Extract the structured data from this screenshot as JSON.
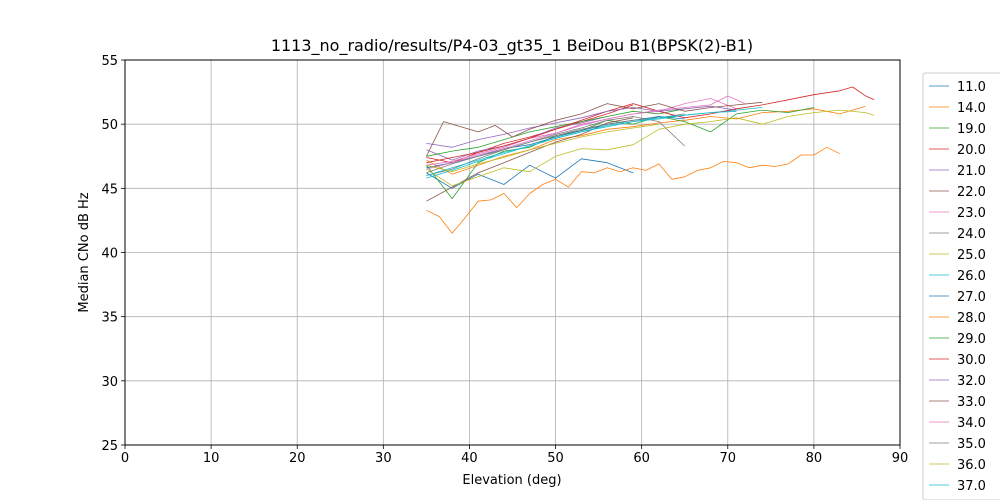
{
  "chart_data": {
    "type": "line",
    "title": "1113_no_radio/results/P4-03_gt35_1 BeiDou B1(BPSK(2)-B1)",
    "xlabel": "Elevation (deg)",
    "ylabel": "Median CNo dB Hz",
    "xlim": [
      0,
      90
    ],
    "ylim": [
      25,
      55
    ],
    "xticks": [
      "0",
      "10",
      "20",
      "30",
      "40",
      "50",
      "60",
      "70",
      "80",
      "90"
    ],
    "yticks": [
      "25",
      "30",
      "35",
      "40",
      "45",
      "50",
      "55"
    ],
    "grid": true,
    "legend_position": "right",
    "series": [
      {
        "name": "11.0",
        "color": "#1f77b4",
        "x": [
          35,
          38,
          41,
          44,
          47,
          50,
          53,
          56,
          59
        ],
        "y": [
          46.2,
          45.0,
          46.1,
          45.3,
          46.8,
          45.8,
          47.3,
          47.0,
          46.2
        ]
      },
      {
        "name": "14.0",
        "color": "#ff7f0e",
        "x": [
          35,
          38,
          41,
          44,
          47,
          50,
          53,
          56,
          59,
          62,
          65,
          68,
          71,
          74,
          77,
          80,
          83,
          86
        ],
        "y": [
          47.2,
          46.1,
          46.8,
          47.5,
          48.0,
          48.8,
          49.1,
          49.6,
          49.8,
          50.1,
          50.3,
          50.6,
          50.4,
          50.9,
          51.0,
          51.2,
          50.8,
          51.4
        ]
      },
      {
        "name": "19.0",
        "color": "#2ca02c",
        "x": [
          35,
          38,
          41,
          44,
          47,
          50,
          53,
          56,
          59,
          62,
          65,
          68,
          71,
          74,
          77,
          80
        ],
        "y": [
          46.8,
          44.2,
          47.0,
          47.9,
          48.2,
          49.1,
          49.5,
          50.3,
          50.0,
          50.6,
          50.2,
          49.4,
          50.8,
          51.1,
          50.9,
          51.3
        ]
      },
      {
        "name": "20.0",
        "color": "#d62728",
        "x": [
          35,
          38,
          41,
          44,
          47,
          50,
          53,
          56,
          59
        ],
        "y": [
          47.4,
          47.0,
          47.8,
          48.5,
          49.0,
          49.6,
          50.2,
          50.8,
          51.5
        ]
      },
      {
        "name": "21.0",
        "color": "#9467bd",
        "x": [
          35,
          38,
          41,
          44,
          47,
          50,
          53,
          56
        ],
        "y": [
          48.0,
          47.2,
          47.9,
          48.3,
          48.9,
          49.7,
          50.1,
          50.6
        ]
      },
      {
        "name": "22.0",
        "color": "#8c564b",
        "x": [
          35,
          38,
          41,
          44,
          47,
          50,
          53,
          56,
          59
        ],
        "y": [
          44.0,
          45.1,
          46.2,
          47.0,
          47.8,
          48.6,
          49.2,
          50.1,
          50.5
        ]
      },
      {
        "name": "23.0",
        "color": "#e377c2",
        "x": [
          35,
          38,
          41,
          44,
          47,
          50,
          53,
          56,
          59,
          62,
          65,
          68,
          71
        ],
        "y": [
          46.8,
          47.1,
          47.7,
          48.2,
          48.9,
          49.3,
          50.0,
          50.4,
          50.8,
          51.0,
          51.6,
          52.0,
          51.2
        ]
      },
      {
        "name": "24.0",
        "color": "#7f7f7f",
        "x": [
          35,
          38,
          41,
          44,
          47,
          50,
          53,
          56,
          59,
          62,
          65
        ],
        "y": [
          46.0,
          46.5,
          47.3,
          48.0,
          48.6,
          49.2,
          49.7,
          50.3,
          50.6,
          50.2,
          48.3
        ]
      },
      {
        "name": "25.0",
        "color": "#bcbd22",
        "x": [
          35,
          38,
          41,
          44,
          47,
          50,
          53,
          56,
          59,
          62,
          65,
          68,
          71,
          74,
          77,
          80,
          83,
          86,
          87
        ],
        "y": [
          46.5,
          45.2,
          45.9,
          46.6,
          46.3,
          47.5,
          48.1,
          48.0,
          48.4,
          49.6,
          50.0,
          50.2,
          50.5,
          50.0,
          50.6,
          50.9,
          51.1,
          50.9,
          50.7
        ]
      },
      {
        "name": "26.0",
        "color": "#17becf",
        "x": [
          35,
          38,
          41,
          44,
          47,
          50,
          53,
          56,
          59,
          62,
          65,
          68,
          71,
          74
        ],
        "y": [
          45.8,
          46.4,
          47.1,
          47.7,
          48.3,
          48.9,
          49.4,
          49.9,
          50.2,
          50.4,
          50.7,
          50.9,
          51.1,
          51.3
        ]
      },
      {
        "name": "27.0",
        "color": "#1f77b4",
        "x": [
          35,
          38,
          41,
          44,
          47,
          50,
          53,
          56,
          59,
          62,
          65
        ],
        "y": [
          46.6,
          47.0,
          47.5,
          48.1,
          48.4,
          49.0,
          49.5,
          50.0,
          50.3,
          50.6,
          50.4
        ]
      },
      {
        "name": "28.0",
        "color": "#ff7f0e",
        "x": [
          35,
          36.5,
          38,
          39.5,
          41,
          42.5,
          44,
          45.5,
          47,
          48.5,
          50,
          51.5,
          53,
          54.5,
          56,
          57.5,
          59,
          60.5,
          62,
          63.5,
          65,
          66.5,
          68,
          69.5,
          71,
          72.5,
          74,
          75.5,
          77,
          78.5,
          80,
          81.5,
          83
        ],
        "y": [
          43.3,
          42.8,
          41.5,
          42.7,
          44.0,
          44.1,
          44.6,
          43.5,
          44.6,
          45.3,
          45.7,
          45.1,
          46.3,
          46.2,
          46.6,
          46.3,
          46.6,
          46.4,
          46.9,
          45.7,
          45.9,
          46.4,
          46.6,
          47.1,
          47.0,
          46.6,
          46.8,
          46.7,
          46.9,
          47.6,
          47.6,
          48.2,
          47.7
        ]
      },
      {
        "name": "29.0",
        "color": "#2ca02c",
        "x": [
          35,
          38,
          41,
          44,
          47,
          50,
          53,
          56,
          59,
          62,
          65
        ],
        "y": [
          47.5,
          47.9,
          48.2,
          48.8,
          49.4,
          49.8,
          50.2,
          50.6,
          51.0,
          50.8,
          51.2
        ]
      },
      {
        "name": "30.0",
        "color": "#d62728",
        "x": [
          35,
          38,
          41,
          44,
          47,
          50,
          53,
          56,
          59,
          62,
          65,
          68,
          71,
          74,
          77,
          80,
          83,
          84.5,
          86,
          87
        ],
        "y": [
          47.0,
          47.4,
          47.8,
          48.3,
          48.9,
          49.6,
          50.3,
          51.0,
          51.6,
          51.0,
          50.5,
          50.8,
          51.2,
          51.5,
          51.9,
          52.3,
          52.6,
          52.9,
          52.2,
          51.9
        ]
      },
      {
        "name": "32.0",
        "color": "#9467bd",
        "x": [
          35,
          38,
          41,
          44,
          47,
          50,
          53,
          56,
          59,
          62,
          65,
          68,
          71
        ],
        "y": [
          48.5,
          48.2,
          48.8,
          49.2,
          49.7,
          50.1,
          50.5,
          51.0,
          51.3,
          51.0,
          51.2,
          51.4,
          51.1
        ]
      },
      {
        "name": "33.0",
        "color": "#8c564b",
        "x": [
          35,
          37,
          39,
          41,
          43,
          45,
          47,
          50,
          53,
          56,
          59,
          62,
          65,
          68,
          71,
          74
        ],
        "y": [
          47.5,
          50.2,
          49.8,
          49.4,
          49.9,
          49.0,
          49.6,
          50.3,
          50.8,
          51.6,
          51.2,
          51.6,
          51.0,
          51.3,
          51.5,
          51.7
        ]
      },
      {
        "name": "34.0",
        "color": "#e377c2",
        "x": [
          35,
          38,
          41,
          44,
          47,
          50,
          53,
          56,
          59,
          62,
          65,
          68,
          70,
          72
        ],
        "y": [
          46.5,
          47.0,
          47.6,
          48.1,
          48.7,
          49.3,
          49.9,
          50.4,
          50.8,
          51.1,
          51.3,
          51.5,
          52.2,
          51.6
        ]
      },
      {
        "name": "35.0",
        "color": "#7f7f7f",
        "x": [
          35,
          38,
          41,
          44,
          47,
          50,
          53,
          56,
          59,
          62,
          65
        ],
        "y": [
          46.2,
          46.9,
          47.5,
          48.0,
          48.6,
          49.1,
          49.6,
          50.0,
          50.3,
          50.5,
          50.8
        ]
      },
      {
        "name": "36.0",
        "color": "#bcbd22",
        "x": [
          35,
          38,
          41,
          44,
          47,
          50,
          53,
          56,
          59,
          62
        ],
        "y": [
          46.8,
          46.3,
          46.9,
          47.4,
          48.0,
          48.5,
          49.0,
          49.4,
          49.7,
          50.0
        ]
      },
      {
        "name": "37.0",
        "color": "#17becf",
        "x": [
          35,
          38,
          41,
          44,
          47,
          50,
          53,
          56,
          59,
          62,
          65,
          68,
          71
        ],
        "y": [
          46.0,
          46.6,
          47.2,
          47.8,
          48.3,
          48.9,
          49.4,
          49.8,
          50.2,
          50.5,
          50.7,
          50.9,
          51.0
        ]
      }
    ]
  }
}
